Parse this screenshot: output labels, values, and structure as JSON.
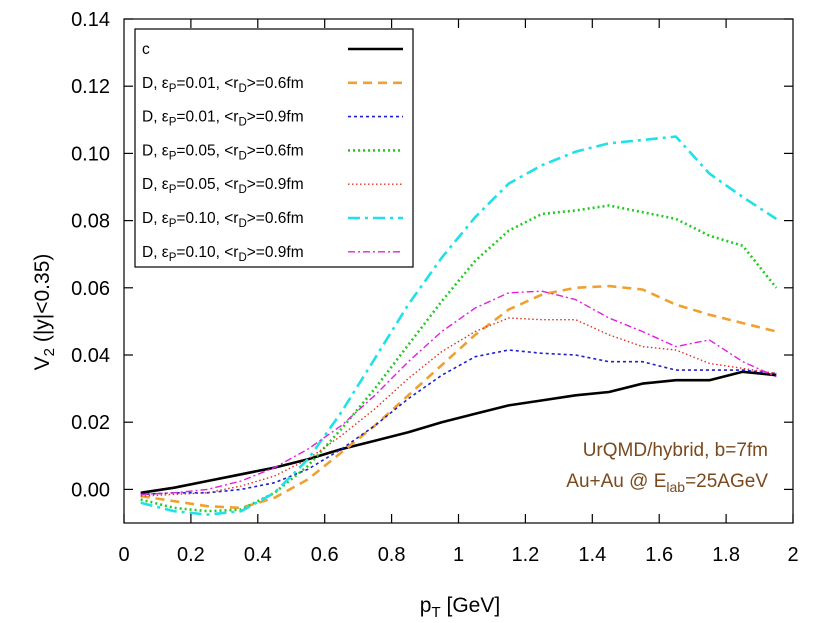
{
  "chart_data": {
    "type": "line",
    "xlabel": "p",
    "xlabel_sub": "T",
    "xlabel_rest": " [GeV]",
    "ylabel": "V",
    "ylabel_sub": "2",
    "ylabel_rest": " (|y|<0.35)",
    "xlim": [
      0,
      2
    ],
    "ylim": [
      -0.01,
      0.14
    ],
    "xticks": [
      0,
      0.2,
      0.4,
      0.6,
      0.8,
      1,
      1.2,
      1.4,
      1.6,
      1.8,
      2
    ],
    "xtick_labels": [
      "0",
      "0.2",
      "0.4",
      "0.6",
      "0.8",
      "1",
      "1.2",
      "1.4",
      "1.6",
      "1.8",
      "2"
    ],
    "yticks": [
      0,
      0.02,
      0.04,
      0.06,
      0.08,
      0.1,
      0.12,
      0.14
    ],
    "ytick_labels": [
      "0.00",
      "0.02",
      "0.04",
      "0.06",
      "0.08",
      "0.10",
      "0.12",
      "0.14"
    ],
    "grid": false,
    "legend_position": "top-left",
    "x": [
      0.05,
      0.15,
      0.25,
      0.35,
      0.45,
      0.55,
      0.65,
      0.75,
      0.85,
      0.95,
      1.05,
      1.15,
      1.25,
      1.35,
      1.45,
      1.55,
      1.65,
      1.75,
      1.85,
      1.95
    ],
    "series": [
      {
        "name": "c",
        "legend": {
          "pre": "c",
          "sub1": "",
          "mid": "",
          "sub2": "",
          "post": ""
        },
        "color": "#000000",
        "dash": "",
        "width": 2.6,
        "values": [
          -0.001,
          0.0005,
          0.0025,
          0.0045,
          0.0065,
          0.009,
          0.012,
          0.0145,
          0.017,
          0.02,
          0.0225,
          0.025,
          0.0265,
          0.028,
          0.029,
          0.0315,
          0.0325,
          0.0325,
          0.035,
          0.034
        ]
      },
      {
        "name": "D, εP=0.01, <rD>=0.6fm",
        "legend": {
          "pre": "D, ε",
          "sub1": "P",
          "mid": "=0.01, <r",
          "sub2": "D",
          "post": ">=0.6fm"
        },
        "color": "#f0a030",
        "dash": "9,6",
        "width": 2.6,
        "values": [
          -0.002,
          -0.0035,
          -0.005,
          -0.0055,
          -0.0025,
          0.003,
          0.011,
          0.019,
          0.028,
          0.037,
          0.046,
          0.0535,
          0.058,
          0.06,
          0.0605,
          0.0595,
          0.055,
          0.052,
          0.0495,
          0.047
        ]
      },
      {
        "name": "D, εP=0.01, <rD>=0.9fm",
        "legend": {
          "pre": "D, ε",
          "sub1": "P",
          "mid": "=0.01, <r",
          "sub2": "D",
          "post": ">=0.9fm"
        },
        "color": "#2020c8",
        "dash": "3,3",
        "width": 1.6,
        "values": [
          -0.0015,
          -0.001,
          -0.001,
          0.0,
          0.002,
          0.006,
          0.012,
          0.019,
          0.027,
          0.034,
          0.0395,
          0.0415,
          0.0405,
          0.04,
          0.038,
          0.038,
          0.0355,
          0.0355,
          0.0355,
          0.0345
        ]
      },
      {
        "name": "D, εP=0.05, <rD>=0.6fm",
        "legend": {
          "pre": "D, ε",
          "sub1": "P",
          "mid": "=0.05, <r",
          "sub2": "D",
          "post": ">=0.6fm"
        },
        "color": "#22cc22",
        "dash": "2,3",
        "width": 2.6,
        "values": [
          -0.003,
          -0.0055,
          -0.0065,
          -0.006,
          -0.001,
          0.007,
          0.018,
          0.03,
          0.043,
          0.056,
          0.068,
          0.077,
          0.082,
          0.083,
          0.0845,
          0.0825,
          0.0805,
          0.0755,
          0.0725,
          0.06
        ]
      },
      {
        "name": "D, εP=0.05, <rD>=0.9fm",
        "legend": {
          "pre": "D, ε",
          "sub1": "P",
          "mid": "=0.05, <r",
          "sub2": "D",
          "post": ">=0.9fm"
        },
        "color": "#e03020",
        "dash": "1.5,2.5",
        "width": 1.4,
        "values": [
          -0.002,
          -0.0015,
          -0.001,
          0.001,
          0.004,
          0.009,
          0.016,
          0.024,
          0.033,
          0.041,
          0.047,
          0.051,
          0.0505,
          0.0505,
          0.046,
          0.0425,
          0.0415,
          0.0375,
          0.036,
          0.0345
        ]
      },
      {
        "name": "D, εP=0.10, <rD>=0.6fm",
        "legend": {
          "pre": "D, ε",
          "sub1": "P",
          "mid": "=0.10, <r",
          "sub2": "D",
          "post": ">=0.6fm"
        },
        "color": "#22e0e8",
        "dash": "12,5,3,5",
        "width": 2.6,
        "values": [
          -0.004,
          -0.0065,
          -0.0075,
          -0.0065,
          -0.001,
          0.009,
          0.023,
          0.039,
          0.055,
          0.069,
          0.081,
          0.091,
          0.0965,
          0.1005,
          0.103,
          0.104,
          0.105,
          0.094,
          0.087,
          0.0805
        ]
      },
      {
        "name": "D, εP=0.10, <rD>=0.9fm",
        "legend": {
          "pre": "D, ε",
          "sub1": "P",
          "mid": "=0.10, <r",
          "sub2": "D",
          "post": ">=0.9fm"
        },
        "color": "#e020e0",
        "dash": "7,3,2,3",
        "width": 1.4,
        "values": [
          -0.0015,
          -0.001,
          0.0,
          0.0025,
          0.0065,
          0.012,
          0.019,
          0.028,
          0.038,
          0.047,
          0.054,
          0.0585,
          0.059,
          0.0565,
          0.051,
          0.047,
          0.0425,
          0.0445,
          0.038,
          0.0335
        ]
      }
    ],
    "annotations": [
      {
        "pre": "UrQMD/hybrid, b=7fm",
        "sub": "",
        "post": ""
      },
      {
        "pre": "Au+Au @ E",
        "sub": "lab",
        "post": "=25AGeV"
      }
    ],
    "annotation_color": "#7a4a1e"
  }
}
